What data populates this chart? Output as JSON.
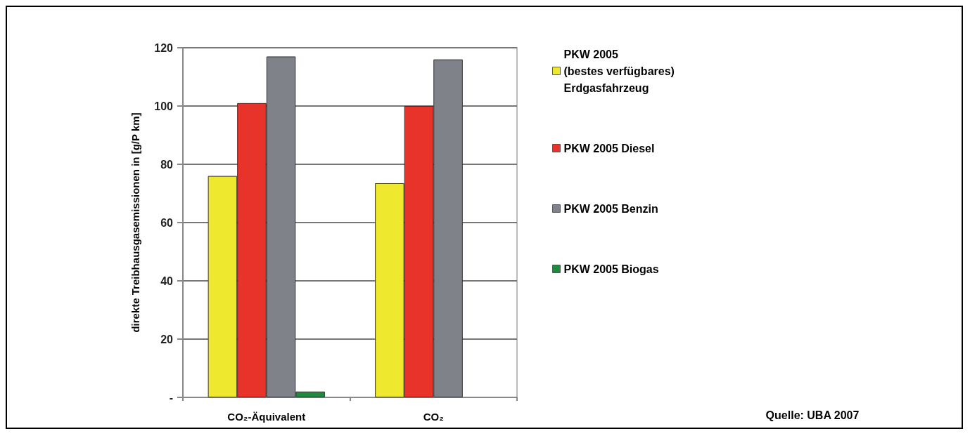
{
  "chart_data": {
    "type": "bar",
    "ylabel": "direkte Treibhausgasemissionen in [g/P km]",
    "categories": [
      "CO₂-Äquivalent",
      "CO₂"
    ],
    "series": [
      {
        "name": "PKW 2005\n(bestes verfügbares)\nErdgasfahrzeug",
        "color": "#eee82e",
        "values": [
          76,
          73.5
        ]
      },
      {
        "name": "PKW 2005 Diesel",
        "color": "#e8332b",
        "values": [
          101,
          100
        ]
      },
      {
        "name": "PKW 2005 Benzin",
        "color": "#80828a",
        "values": [
          117,
          116
        ]
      },
      {
        "name": "PKW 2005 Biogas",
        "color": "#1e8a3e",
        "values": [
          2,
          null
        ]
      }
    ],
    "ylim": [
      0,
      120
    ],
    "yticks": [
      {
        "value": 0,
        "label": "-"
      },
      20,
      40,
      60,
      80,
      100,
      120
    ],
    "grid": "y",
    "legend": "right",
    "annotations": [
      "Quelle: UBA 2007"
    ]
  }
}
